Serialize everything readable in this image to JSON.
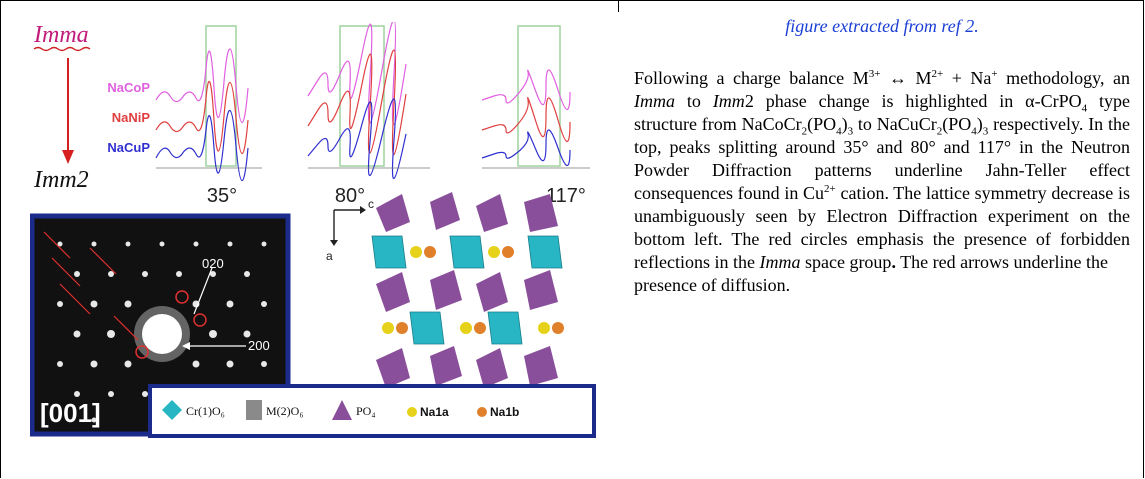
{
  "figure": {
    "phase_top": "Imma",
    "phase_bottom": "Imm2",
    "samples": [
      "NaCoP",
      "NaNiP",
      "NaCuP"
    ],
    "angles": [
      "35°",
      "80°",
      "117°"
    ],
    "ed_labels": {
      "spot_020": "020",
      "spot_200": "200",
      "zone_axis": "[001]"
    },
    "legend": [
      "Cr(1)O₆",
      "M(2)O₆",
      "PO₄",
      "Na1a",
      "Na1b"
    ],
    "axis_letters": {
      "c": "c",
      "a": "a"
    },
    "colors": {
      "NaCoP": "#e060e0",
      "NaNiP": "#e04040",
      "NaCuP": "#3030d0",
      "arrow": "#d62020",
      "frame": "#1c2a8c"
    }
  },
  "text": {
    "caption": "figure extracted from ref 2.",
    "p1": "Following a charge balance M",
    "p1_sup1": "3+",
    "p1b": " ↔ M",
    "p1_sup2": "2+",
    "p1c": " + Na",
    "p1_sup3": "+",
    "p1d": " methodology, an ",
    "imma": "Imma",
    "to": " to ",
    "imm2": "Imm",
    "imm2_suffix": "2 phase change is highlighted in α-CrPO",
    "sub4": "4",
    "p2": " type structure from NaCoCr",
    "sub2a": "2",
    "p2b": "(PO",
    "sub4b": "4",
    "p2c": ")",
    "sub3a": "3",
    "p2d": " to NaCuCr",
    "sub2b": "2",
    "p2e": "(PO",
    "sub4c": "4",
    "p2f": ")",
    "sub3b": "3",
    "p3": " respectively. In the top, peaks splitting around 35° and 80° and 117° in the Neutron Powder Diffraction patterns underline Jahn-Teller effect consequences found in Cu",
    "sup2plus": "2+",
    "p4": " cation. The lattice symmetry decrease is unambiguously seen by Electron Diffraction experiment on the bottom left. The red circles emphasis the presence of forbidden reflections in the ",
    "imma2": "Imma",
    "p5": " space group",
    "p5_dot": ".",
    "p6": " The red arrows underline the",
    "p7": "presence of diffusion."
  }
}
